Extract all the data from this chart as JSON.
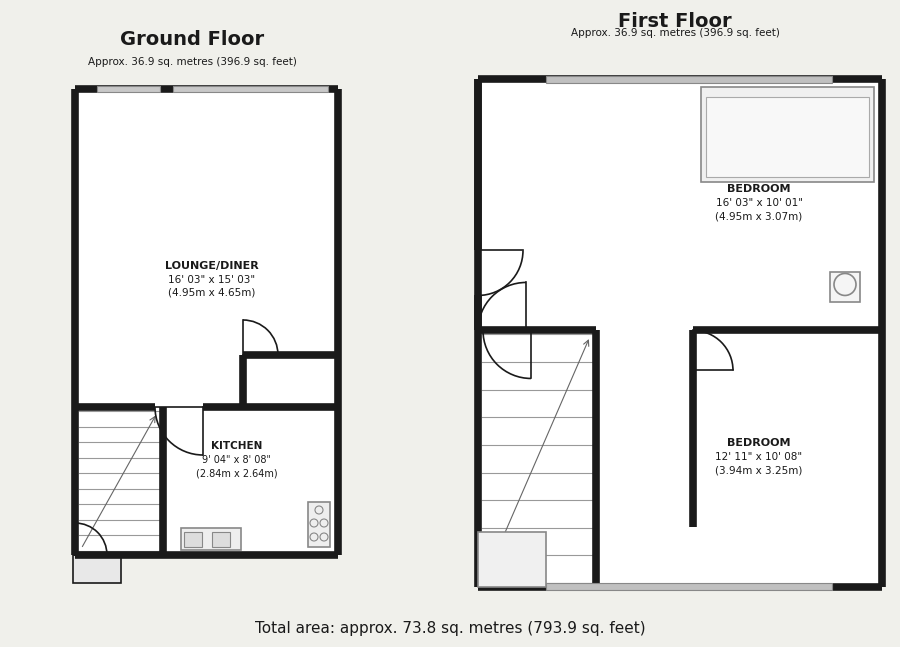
{
  "bg_color": "#f0f0eb",
  "wall_color": "#1a1a1a",
  "fill_color": "#ffffff",
  "title_gf": "Ground Floor",
  "title_ff": "First Floor",
  "sub_gf": "Approx. 36.9 sq. metres (396.9 sq. feet)",
  "sub_ff": "Approx. 36.9 sq. metres (396.9 sq. feet)",
  "footer": "Total area: approx. 73.8 sq. metres (793.9 sq. feet)",
  "lounge_label": "LOUNGE/DINER",
  "lounge_dim1": "16' 03\" x 15' 03\"",
  "lounge_dim2": "(4.95m x 4.65m)",
  "kitchen_label": "KITCHEN",
  "kitchen_dim1": "9' 04\" x 8' 08\"",
  "kitchen_dim2": "(2.84m x 2.64m)",
  "bed1_label": "BEDROOM",
  "bed1_dim1": "16' 03\" x 10' 01\"",
  "bed1_dim2": "(4.95m x 3.07m)",
  "bed2_label": "BEDROOM",
  "bed2_dim1": "12' 11\" x 10' 08\"",
  "bed2_dim2": "(3.94m x 3.25m)"
}
